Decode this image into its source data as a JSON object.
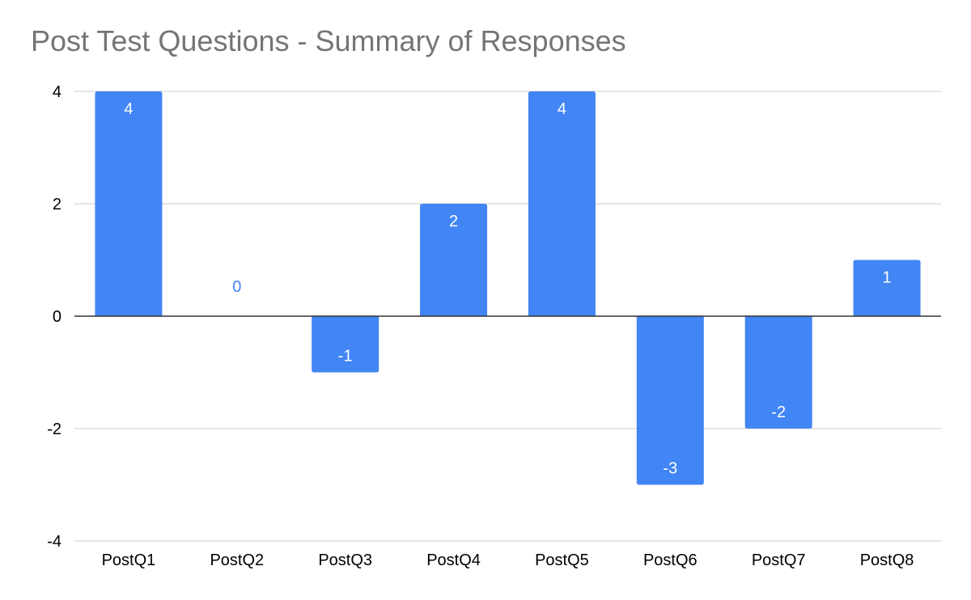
{
  "chart_data": {
    "type": "bar",
    "title": "Post Test Questions - Summary of Responses",
    "xlabel": "",
    "ylabel": "",
    "categories": [
      "PostQ1",
      "PostQ2",
      "PostQ3",
      "PostQ4",
      "PostQ5",
      "PostQ6",
      "PostQ7",
      "PostQ8"
    ],
    "values": [
      4,
      0,
      -1,
      2,
      4,
      -3,
      -2,
      1
    ],
    "data_labels": [
      "4",
      "0",
      "-1",
      "2",
      "4",
      "-3",
      "-2",
      "1"
    ],
    "ylim": [
      -4,
      4
    ],
    "yticks": [
      4,
      2,
      0,
      -2,
      -4
    ],
    "grid": true,
    "legend": "none",
    "colors": {
      "bar": "#4285f4",
      "grid": "#cccccc",
      "zero_line": "#333333",
      "title": "#757575",
      "label_inside": "#ffffff",
      "label_outside": "#4285f4"
    }
  }
}
